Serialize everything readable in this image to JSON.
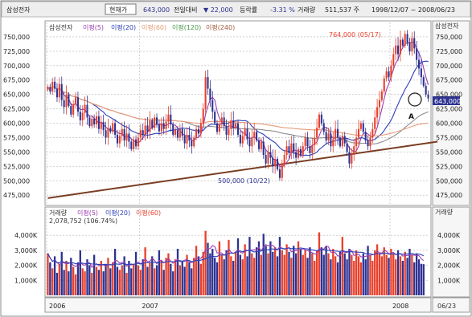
{
  "header": {
    "name": "삼성전자",
    "tab": "현재가",
    "price": "643,000",
    "change_label": "전일대비",
    "change": "▼ 22,000",
    "rate_label": "등락률",
    "rate": "-3.31 %",
    "volume_label": "거래량",
    "volume": "511,537 주",
    "period": "1998/12/07 ~ 2008/06/23"
  },
  "legend_price": {
    "title": "삼성전자",
    "items": [
      "이평(5)",
      "이평(20)",
      "이평(60)",
      "이평(120)",
      "이평(240)"
    ]
  },
  "legend_volume": {
    "title": "거래량",
    "items": [
      "이평(5)",
      "이평(20)",
      "이평(60)"
    ]
  },
  "annotations": {
    "high": "764,000 (05/17)",
    "low": "500,000 (10/22)",
    "current": "643,000",
    "last_volume": "2,078,752 (106.74%)",
    "marker": "A",
    "corner_top": "삼성전자",
    "corner_vol": "거래량",
    "last_date": "06/23"
  },
  "colors": {
    "up": "#e8402c",
    "down": "#2d3291",
    "ma5": "#9a3fb0",
    "ma20": "#2b3fb8",
    "ma60": "#8e8e8e",
    "ma120": "#e89a78",
    "ma240": "#a05a3a",
    "trendline": "#7a3d22",
    "grid": "#cfcfcf"
  },
  "chart_data": {
    "type": "candlestick",
    "price_axis": {
      "ticks": [
        475000,
        500000,
        525000,
        550000,
        575000,
        600000,
        625000,
        650000,
        675000,
        700000,
        725000,
        750000
      ],
      "tick_labels": [
        "475,000",
        "500,000",
        "525,000",
        "550,000",
        "575,000",
        "600,000",
        "625,000",
        "650,000",
        "675,000",
        "700,000",
        "725,000",
        "750,000"
      ],
      "ylim": [
        460000,
        775000
      ]
    },
    "volume_axis": {
      "ticks": [
        1000000,
        2000000,
        3000000,
        4000000
      ],
      "tick_labels": [
        "1,000K",
        "2,000K",
        "3,000K",
        "4,000K"
      ],
      "ylim": [
        0,
        4600000
      ]
    },
    "x_labels": [
      "2006",
      "2007",
      "2008"
    ],
    "x_label_index": [
      0,
      40,
      148
    ],
    "closes": [
      663000,
      655000,
      672000,
      660000,
      645000,
      668000,
      640000,
      628000,
      650000,
      630000,
      615000,
      633000,
      645000,
      620000,
      605000,
      618000,
      632000,
      610000,
      595000,
      608000,
      598000,
      612000,
      590000,
      602000,
      588000,
      575000,
      592000,
      585000,
      600000,
      580000,
      565000,
      578000,
      590000,
      570000,
      582000,
      568000,
      555000,
      572000,
      560000,
      575000,
      588000,
      580000,
      596000,
      585000,
      605000,
      592000,
      610000,
      598000,
      586000,
      600000,
      590000,
      603000,
      615000,
      598000,
      580000,
      588000,
      575000,
      590000,
      578000,
      565000,
      580000,
      570000,
      560000,
      575000,
      590000,
      582000,
      600000,
      625000,
      680000,
      660000,
      640000,
      620000,
      600000,
      585000,
      598000,
      610000,
      595000,
      580000,
      590000,
      605000,
      592000,
      600000,
      580000,
      565000,
      578000,
      590000,
      572000,
      560000,
      575000,
      585000,
      570000,
      555000,
      568000,
      545000,
      530000,
      550000,
      540000,
      525000,
      538000,
      520000,
      505000,
      530000,
      545000,
      560000,
      548000,
      565000,
      550000,
      540000,
      555000,
      545000,
      560000,
      575000,
      560000,
      548000,
      562000,
      575000,
      592000,
      615000,
      600000,
      585000,
      570000,
      582000,
      560000,
      572000,
      590000,
      575000,
      560000,
      578000,
      565000,
      550000,
      530000,
      545000,
      560000,
      575000,
      590000,
      600000,
      585000,
      570000,
      560000,
      575000,
      590000,
      610000,
      628000,
      640000,
      655000,
      678000,
      690000,
      680000,
      700000,
      720000,
      735000,
      720000,
      745000,
      735000,
      755000,
      740000,
      725000,
      748000,
      730000,
      710000,
      695000,
      680000,
      665000,
      650000,
      643000
    ],
    "volumes": [
      2800000,
      2200000,
      1800000,
      2600000,
      1500000,
      2100000,
      2900000,
      1700000,
      2300000,
      1600000,
      2500000,
      1900000,
      1400000,
      2200000,
      3000000,
      1800000,
      1600000,
      2400000,
      2000000,
      1500000,
      2700000,
      1900000,
      1700000,
      2300000,
      1600000,
      2100000,
      2500000,
      1800000,
      2200000,
      3100000,
      1900000,
      1700000,
      2000000,
      2600000,
      1500000,
      2300000,
      1800000,
      2100000,
      2900000,
      2000000,
      1700000,
      2400000,
      3200000,
      1900000,
      2200000,
      2600000,
      1800000,
      2000000,
      3000000,
      2300000,
      1700000,
      2500000,
      2800000,
      2100000,
      1600000,
      2400000,
      3100000,
      2000000,
      2300000,
      1900000,
      2700000,
      2200000,
      1800000,
      2500000,
      3300000,
      2600000,
      2100000,
      2900000,
      4300000,
      3500000,
      2800000,
      3100000,
      2500000,
      2200000,
      3600000,
      2700000,
      2400000,
      3000000,
      3700000,
      2600000,
      2300000,
      2900000,
      3800000,
      2700000,
      2400000,
      3400000,
      2600000,
      3900000,
      2800000,
      2500000,
      3200000,
      3600000,
      2700000,
      4100000,
      3300000,
      2800000,
      3600000,
      2900000,
      3200000,
      2600000,
      3900000,
      3000000,
      2700000,
      3400000,
      2900000,
      2500000,
      3300000,
      2800000,
      3600000,
      3100000,
      2700000,
      3000000,
      2500000,
      3200000,
      2800000,
      2300000,
      3000000,
      4200000,
      3200000,
      2700000,
      3300000,
      2800000,
      2400000,
      3100000,
      2600000,
      2200000,
      2900000,
      3900000,
      2800000,
      2400000,
      3100000,
      2700000,
      2300000,
      3000000,
      2600000,
      2200000,
      2800000,
      2400000,
      3300000,
      2700000,
      2300000,
      3000000,
      3400000,
      2800000,
      2600000,
      3200000,
      2700000,
      2500000,
      3100000,
      2800000,
      2400000,
      3000000,
      2600000,
      2300000,
      2900000,
      2500000,
      3100000,
      2700000,
      2200000,
      2800000,
      2400000,
      2100000,
      2078752
    ],
    "high": 764000,
    "low": 500000,
    "trendline": [
      [
        0,
        470000
      ],
      [
        168,
        568000
      ]
    ],
    "series": [
      {
        "name": "이평(5)",
        "period": 5
      },
      {
        "name": "이평(20)",
        "period": 20
      },
      {
        "name": "이평(60)",
        "period": 60
      },
      {
        "name": "이평(120)",
        "period": 120
      },
      {
        "name": "이평(240)",
        "period": 240
      }
    ]
  }
}
